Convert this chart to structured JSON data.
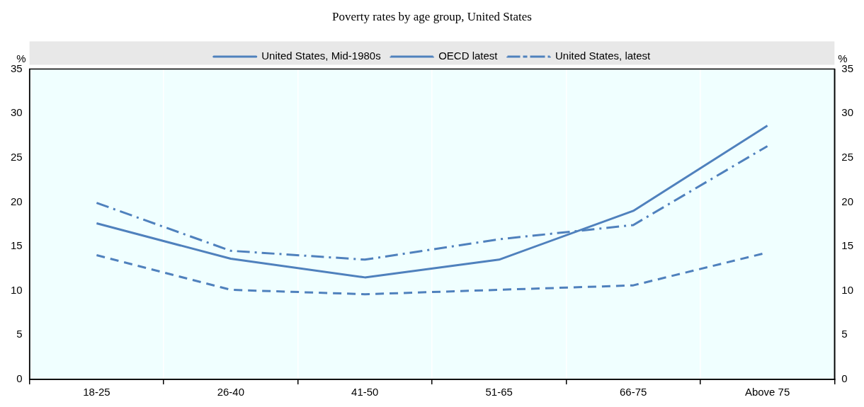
{
  "chart_data": {
    "type": "line",
    "title": "Poverty rates by age group, United States",
    "ylabel": "%",
    "y2label": "%",
    "categories": [
      "18-25",
      "26-40",
      "41-50",
      "51-65",
      "66-75",
      "Above 75"
    ],
    "series": [
      {
        "name": "United States, Mid-1980s",
        "color": "#4f81bd",
        "line_style": "solid",
        "values": [
          17.6,
          13.6,
          11.5,
          13.5,
          19.0,
          28.6
        ]
      },
      {
        "name": "OECD latest",
        "color": "#4f81bd",
        "line_style": "dashed",
        "values": [
          14.0,
          10.1,
          9.6,
          10.1,
          10.6,
          14.3
        ]
      },
      {
        "name": "United States, latest",
        "color": "#4f81bd",
        "line_style": "dashdot",
        "values": [
          19.9,
          14.5,
          13.5,
          15.8,
          17.4,
          26.3
        ]
      }
    ],
    "ylim": [
      0,
      35
    ],
    "yticks": [
      0,
      5,
      10,
      15,
      20,
      25,
      30,
      35
    ],
    "y2lim": [
      0,
      35
    ],
    "y2ticks": [
      0,
      5,
      10,
      15,
      20,
      25,
      30,
      35
    ],
    "grid": "x",
    "legend": "top",
    "marker": "none"
  }
}
